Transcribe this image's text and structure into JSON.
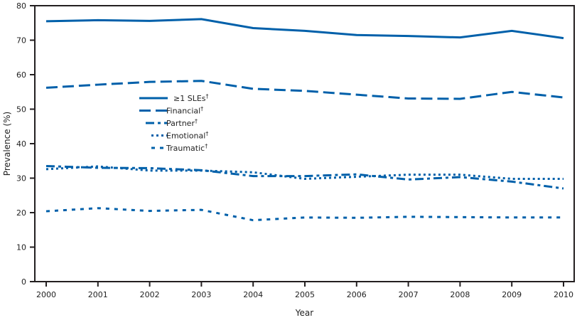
{
  "chart_data": {
    "type": "line",
    "title": "",
    "xlabel": "Year",
    "ylabel": "Prevalence (%)",
    "x": [
      2000,
      2001,
      2002,
      2003,
      2004,
      2005,
      2006,
      2007,
      2008,
      2009,
      2010
    ],
    "xlim": [
      2000,
      2010
    ],
    "ylim": [
      0,
      80
    ],
    "yticks": [
      0,
      10,
      20,
      30,
      40,
      50,
      60,
      70,
      80
    ],
    "grid": false,
    "legend_position": "upper-left inside plot",
    "color": "#0060AA",
    "series": [
      {
        "name": "≥1 SLEs",
        "mark": "†",
        "style": "solid",
        "values": [
          75.5,
          75.8,
          75.6,
          76.1,
          73.5,
          72.7,
          71.5,
          71.2,
          70.8,
          72.7,
          70.6
        ]
      },
      {
        "name": "Financial",
        "mark": "†",
        "style": "long-dash",
        "values": [
          56.2,
          57.1,
          57.9,
          58.2,
          55.9,
          55.3,
          54.2,
          53.1,
          53.0,
          55.0,
          53.4
        ]
      },
      {
        "name": "Partner",
        "mark": "†",
        "style": "dash-dot",
        "values": [
          33.5,
          33.0,
          32.9,
          32.3,
          30.6,
          30.6,
          31.1,
          29.6,
          30.3,
          29.0,
          27.0
        ]
      },
      {
        "name": "Emotional",
        "mark": "†",
        "style": "dotted",
        "values": [
          32.6,
          33.4,
          32.2,
          32.2,
          31.7,
          29.8,
          30.4,
          31.0,
          31.0,
          29.8,
          29.8
        ]
      },
      {
        "name": "Traumatic",
        "mark": "†",
        "style": "short-dash",
        "values": [
          20.4,
          21.3,
          20.5,
          20.8,
          17.8,
          18.6,
          18.5,
          18.8,
          18.7,
          18.6,
          18.6
        ]
      }
    ]
  }
}
